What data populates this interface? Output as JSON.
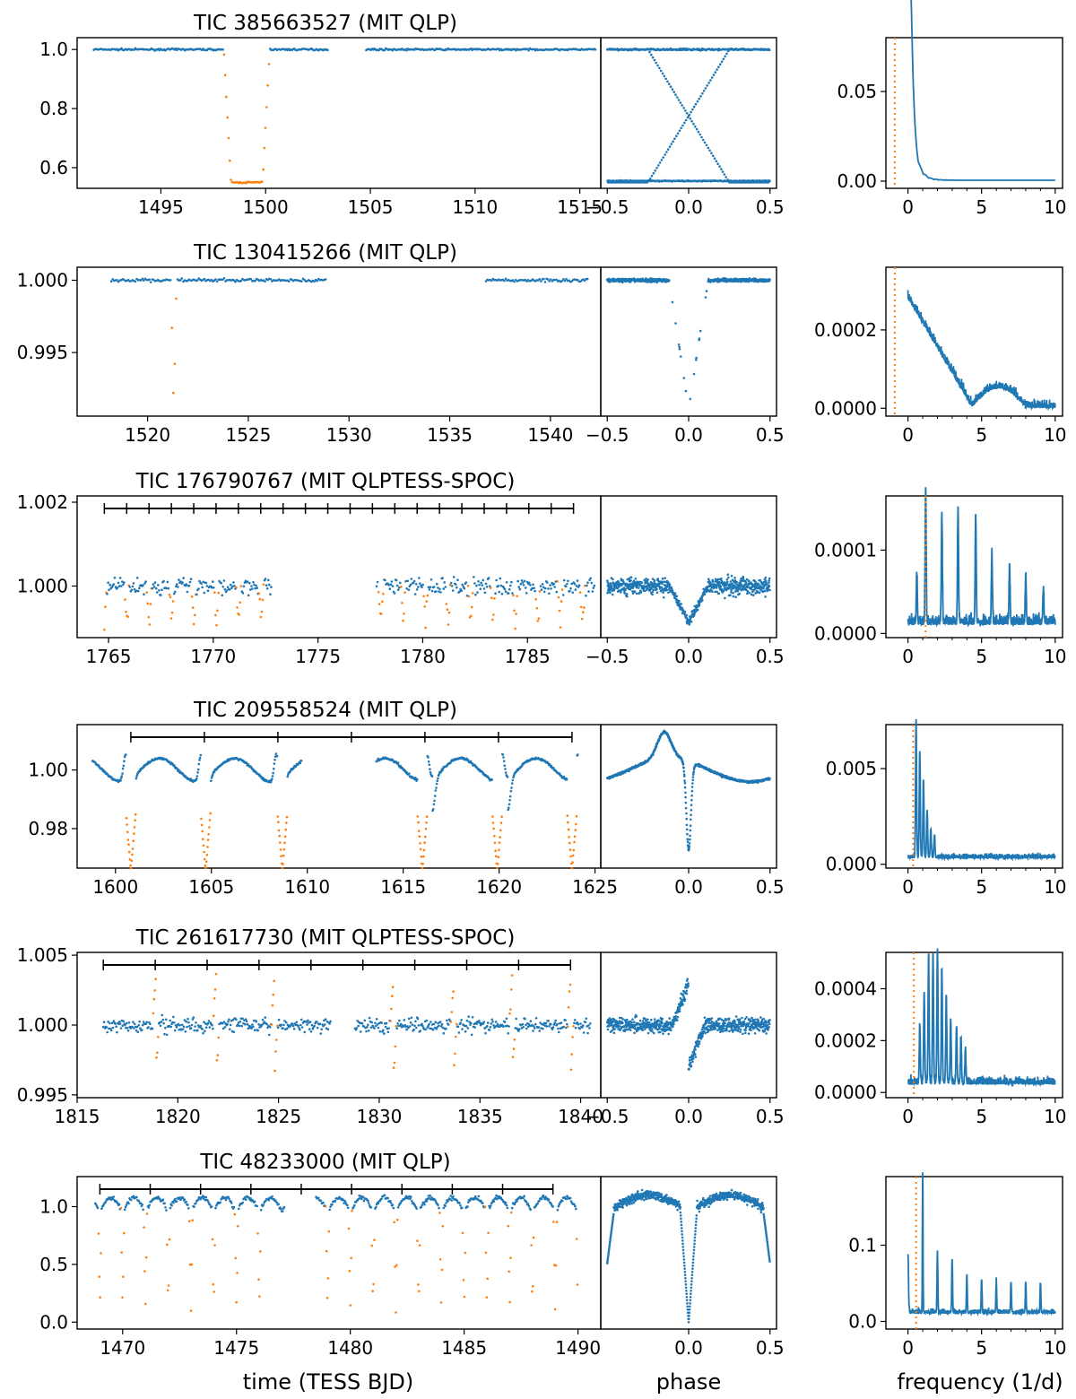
{
  "figure": {
    "xlabels": {
      "time": "time (TESS BJD)",
      "phase": "phase",
      "frequency": "frequency (1/d)"
    },
    "colors": {
      "data": "#1f77b4",
      "eclipse": "#ff7f0e",
      "axis": "#000000"
    }
  },
  "chart_data": [
    {
      "type": "scatter",
      "title": "TIC 385663527 (MIT QLP)",
      "time": {
        "xlim": [
          1491,
          1516
        ],
        "ylim": [
          0.53,
          1.04
        ],
        "xticks": [
          1495,
          1500,
          1505,
          1510,
          1515
        ],
        "xtick_labels": [
          "1495",
          "1500",
          "1505",
          "1510",
          "1515"
        ],
        "yticks": [
          0.6,
          0.8,
          1.0
        ],
        "ytick_labels": [
          "0.6",
          "0.8",
          "1.0"
        ],
        "segments": [
          [
            1491.8,
            1503.0
          ],
          [
            1504.8,
            1515.8
          ]
        ],
        "eclipses": [
          1499.1
        ],
        "eclipse_half_width": 1.1,
        "eclipse_depth": 0.45,
        "shape": "box",
        "noise": 0.003,
        "spacing": 0.055
      },
      "phase": {
        "ylim": [
          0.53,
          1.04
        ],
        "xticks": [
          -0.5,
          0.0,
          0.5
        ],
        "xtick_labels": [
          "−0.5",
          "0.0",
          "0.5"
        ],
        "mode": "cross"
      },
      "periodogram": {
        "ylim": [
          -0.004,
          0.08
        ],
        "yticks": [
          0.0,
          0.05
        ],
        "ytick_labels": [
          "0.00",
          "0.05"
        ],
        "line_freq": -0.9,
        "peaks": [
          [
            0.05,
            0.078,
            0.3
          ]
        ],
        "floor": 0.001,
        "noise": 0.0005,
        "mode": "decay"
      }
    },
    {
      "type": "scatter",
      "title": "TIC 130415266 (MIT QLP)",
      "time": {
        "xlim": [
          1516.5,
          1542.5
        ],
        "ylim": [
          0.9906,
          1.0009
        ],
        "xticks": [
          1520,
          1525,
          1530,
          1535,
          1540
        ],
        "xtick_labels": [
          "1520",
          "1525",
          "1530",
          "1535",
          "1540"
        ],
        "yticks": [
          0.995,
          1.0
        ],
        "ytick_labels": [
          "0.995",
          "1.000"
        ],
        "segments": [
          [
            1518.2,
            1528.9
          ],
          [
            1536.8,
            1541.9
          ]
        ],
        "eclipses": [
          1521.3
        ],
        "eclipse_half_width": 0.14,
        "eclipse_depth": 0.009,
        "shape": "v",
        "noise": 0.00012,
        "spacing": 0.07
      },
      "phase": {
        "ylim": [
          0.9906,
          1.0009
        ],
        "xticks": [
          -0.5,
          0.0,
          0.5
        ],
        "xtick_labels": [
          "−0.5",
          "0.0",
          "0.5"
        ],
        "mode": "fold"
      },
      "periodogram": {
        "ylim": [
          -2e-05,
          0.00036
        ],
        "yticks": [
          0.0,
          0.0002
        ],
        "ytick_labels": [
          "0.0000",
          "0.0002"
        ],
        "line_freq": -0.9,
        "peaks": [],
        "floor": 0.0,
        "noise": 1e-05,
        "mode": "slope"
      }
    },
    {
      "type": "scatter",
      "title": "TIC 176790767 (MIT QLPTESS-SPOC)",
      "time": {
        "xlim": [
          1763.5,
          1788.5
        ],
        "ylim": [
          0.99877,
          1.00215
        ],
        "xticks": [
          1765,
          1770,
          1775,
          1780,
          1785
        ],
        "xtick_labels": [
          "1765",
          "1770",
          "1775",
          "1780",
          "1785"
        ],
        "yticks": [
          1.0,
          1.002
        ],
        "ytick_labels": [
          "1.000",
          "1.002"
        ],
        "segments": [
          [
            1764.8,
            1772.8
          ],
          [
            1777.8,
            1788.2
          ]
        ],
        "eclipses": [
          1764.8,
          1765.87,
          1766.94,
          1768.01,
          1769.08,
          1770.15,
          1771.22,
          1772.29,
          1778.0,
          1779.07,
          1780.14,
          1781.21,
          1782.28,
          1783.35,
          1784.42,
          1785.49,
          1786.56,
          1787.63
        ],
        "eclipse_half_width": 0.12,
        "eclipse_depth": 0.0009,
        "shape": "v",
        "noise": 0.00022,
        "spacing": 0.045,
        "ruler": [
          1764.8,
          1787.2
        ],
        "ruler_ticks": 21
      },
      "phase": {
        "ylim": [
          0.99877,
          1.00215
        ],
        "xticks": [
          -0.5,
          0.0,
          0.5
        ],
        "xtick_labels": [
          "−0.5",
          "0.0",
          "0.5"
        ],
        "mode": "fold"
      },
      "periodogram": {
        "ylim": [
          -5e-06,
          0.000165
        ],
        "yticks": [
          0.0,
          0.0001
        ],
        "ytick_labels": [
          "0.0000",
          "0.0001"
        ],
        "line_freq": 1.2,
        "peaks": [
          [
            0.6,
            6e-05,
            0.05
          ],
          [
            1.2,
            0.000163,
            0.05
          ],
          [
            2.3,
            0.00013,
            0.05
          ],
          [
            3.4,
            0.000138,
            0.05
          ],
          [
            4.6,
            0.00013,
            0.05
          ],
          [
            5.7,
            8.2e-05,
            0.05
          ],
          [
            6.9,
            7e-05,
            0.05
          ],
          [
            8.0,
            5.5e-05,
            0.05
          ],
          [
            9.2,
            4e-05,
            0.05
          ]
        ],
        "floor": 1e-05,
        "noise": 1.2e-05,
        "mode": "comb"
      }
    },
    {
      "type": "scatter",
      "title": "TIC 209558524 (MIT QLP)",
      "time": {
        "xlim": [
          1598,
          1625.3
        ],
        "ylim": [
          0.9665,
          1.0155
        ],
        "xticks": [
          1600,
          1605,
          1610,
          1615,
          1620,
          1625
        ],
        "xtick_labels": [
          "1600",
          "1605",
          "1610",
          "1615",
          "1620",
          "1625"
        ],
        "yticks": [
          0.98,
          1.0
        ],
        "ytick_labels": [
          "0.98",
          "1.00"
        ],
        "segments": [
          [
            1598.8,
            1609.7
          ],
          [
            1613.6,
            1624.1
          ]
        ],
        "eclipses": [
          1600.8,
          1604.7,
          1608.7,
          1616.0,
          1619.9,
          1623.8
        ],
        "eclipse_half_width": 0.25,
        "eclipse_depth": 0.032,
        "shape": "wave",
        "noise": 0.0004,
        "spacing": 0.03,
        "ruler": [
          1600.8,
          1623.8
        ],
        "ruler_ticks": 6
      },
      "phase": {
        "ylim": [
          0.9665,
          1.0155
        ],
        "xticks": [
          0.0,
          0.5
        ],
        "xtick_labels": [
          "0.0",
          "0.5"
        ],
        "mode": "wave"
      },
      "periodogram": {
        "ylim": [
          -0.0002,
          0.0073
        ],
        "yticks": [
          0.0,
          0.005
        ],
        "ytick_labels": [
          "0.000",
          "0.005"
        ],
        "line_freq": 0.35,
        "peaks": [
          [
            0.55,
            0.0071,
            0.05
          ],
          [
            0.8,
            0.0055,
            0.05
          ],
          [
            1.05,
            0.004,
            0.05
          ],
          [
            1.3,
            0.0025,
            0.05
          ],
          [
            1.55,
            0.0015,
            0.05
          ],
          [
            1.8,
            0.0012,
            0.05
          ]
        ],
        "floor": 0.0003,
        "noise": 0.00025,
        "mode": "comb"
      }
    },
    {
      "type": "scatter",
      "title": "TIC 261617730 (MIT QLPTESS-SPOC)",
      "time": {
        "xlim": [
          1815,
          1841
        ],
        "ylim": [
          0.9948,
          1.0052
        ],
        "xticks": [
          1815,
          1820,
          1825,
          1830,
          1835,
          1840
        ],
        "xtick_labels": [
          "1815",
          "1820",
          "1825",
          "1830",
          "1835",
          "1840"
        ],
        "yticks": [
          0.995,
          1.0,
          1.005
        ],
        "ytick_labels": [
          "0.995",
          "1.000",
          "1.005"
        ],
        "segments": [
          [
            1816.3,
            1827.6
          ],
          [
            1828.8,
            1840.5
          ]
        ],
        "eclipses": [
          1818.9,
          1821.9,
          1824.8,
          1830.7,
          1833.7,
          1836.6,
          1839.5
        ],
        "eclipse_half_width": 0.15,
        "eclipse_depth": 0.0035,
        "shape": "flare",
        "noise": 0.00055,
        "spacing": 0.04,
        "ruler": [
          1816.3,
          1839.5
        ],
        "ruler_ticks": 9
      },
      "phase": {
        "ylim": [
          0.9948,
          1.0052
        ],
        "xticks": [
          -0.5,
          0.0,
          0.5
        ],
        "xtick_labels": [
          "−0.5",
          "0.0",
          "0.5"
        ],
        "mode": "flare"
      },
      "periodogram": {
        "ylim": [
          -2e-05,
          0.00054
        ],
        "yticks": [
          0.0,
          0.0002,
          0.0004
        ],
        "ytick_labels": [
          "0.0000",
          "0.0002",
          "0.0004"
        ],
        "line_freq": 0.4,
        "peaks": [
          [
            0.8,
            0.00022,
            0.05
          ],
          [
            1.1,
            0.00035,
            0.05
          ],
          [
            1.4,
            0.00049,
            0.05
          ],
          [
            1.7,
            0.00049,
            0.05
          ],
          [
            2.0,
            0.00052,
            0.05
          ],
          [
            2.3,
            0.00044,
            0.05
          ],
          [
            2.6,
            0.00034,
            0.05
          ],
          [
            2.9,
            0.00025,
            0.05
          ],
          [
            3.3,
            0.00022,
            0.05
          ],
          [
            3.6,
            0.00017,
            0.05
          ],
          [
            3.9,
            0.00013,
            0.05
          ]
        ],
        "floor": 3e-05,
        "noise": 3e-05,
        "mode": "comb"
      }
    },
    {
      "type": "scatter",
      "title": "TIC 48233000 (MIT QLP)",
      "time": {
        "xlim": [
          1468,
          1491
        ],
        "ylim": [
          -0.06,
          1.26
        ],
        "xticks": [
          1470,
          1475,
          1480,
          1485,
          1490
        ],
        "xtick_labels": [
          "1470",
          "1475",
          "1480",
          "1485",
          "1490"
        ],
        "yticks": [
          0.0,
          0.5,
          1.0
        ],
        "ytick_labels": [
          "0.0",
          "0.5",
          "1.0"
        ],
        "segments": [
          [
            1468.8,
            1477.1
          ],
          [
            1478.5,
            1490.0
          ]
        ],
        "eclipses": [
          1469.0,
          1470.0,
          1471.0,
          1472.0,
          1473.0,
          1474.0,
          1475.0,
          1476.0,
          1479.0,
          1480.0,
          1481.0,
          1482.0,
          1483.0,
          1484.0,
          1485.0,
          1486.0,
          1487.0,
          1488.0,
          1489.0,
          1490.0
        ],
        "eclipse_half_width": 0.08,
        "eclipse_depth": 0.9,
        "shape": "deep",
        "noise": 0.02,
        "spacing": 0.035,
        "ruler": [
          1469.0,
          1488.9
        ],
        "ruler_ticks": 9
      },
      "phase": {
        "ylim": [
          -0.06,
          1.26
        ],
        "xticks": [
          0.0,
          0.5
        ],
        "xtick_labels": [
          "0.0",
          "0.5"
        ],
        "mode": "deep"
      },
      "periodogram": {
        "ylim": [
          -0.01,
          0.19
        ],
        "yticks": [
          0.0,
          0.1
        ],
        "ytick_labels": [
          "0.0",
          "0.1"
        ],
        "line_freq": 0.55,
        "peaks": [
          [
            0.0,
            0.075,
            0.05
          ],
          [
            1.0,
            0.185,
            0.03
          ],
          [
            2.0,
            0.08,
            0.04
          ],
          [
            3.0,
            0.07,
            0.04
          ],
          [
            4.0,
            0.05,
            0.04
          ],
          [
            5.0,
            0.045,
            0.04
          ],
          [
            6.0,
            0.04,
            0.04
          ],
          [
            7.0,
            0.04,
            0.04
          ],
          [
            8.0,
            0.04,
            0.04
          ],
          [
            9.0,
            0.04,
            0.04
          ]
        ],
        "floor": 0.01,
        "noise": 0.006,
        "mode": "comb"
      }
    }
  ]
}
